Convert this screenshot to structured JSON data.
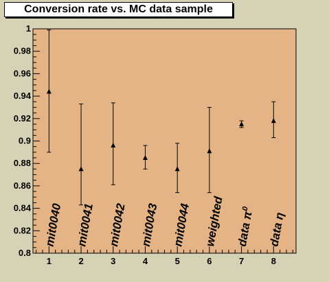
{
  "chart_data": {
    "type": "scatter",
    "title": "Conversion rate vs. MC data sample",
    "xlabel": "",
    "ylabel": "",
    "xlim": [
      0.5,
      8.7
    ],
    "ylim": [
      0.8,
      1.0
    ],
    "x_ticks": [
      1,
      2,
      3,
      4,
      5,
      6,
      7,
      8
    ],
    "y_ticks": [
      0.8,
      0.82,
      0.84,
      0.86,
      0.88,
      0.9,
      0.92,
      0.94,
      0.96,
      0.98,
      1
    ],
    "y_tick_labels": [
      "0.8",
      "0.82",
      "0.84",
      "0.86",
      "0.88",
      "0.9",
      "0.92",
      "0.94",
      "0.96",
      "0.98",
      "1"
    ],
    "grid": false,
    "colors": {
      "frame_bg": "#d6d2b6",
      "plot_bg": "#e4b486",
      "marker": "#000000"
    },
    "points": [
      {
        "x": 1,
        "label": "mit0040",
        "y": 0.944,
        "err_low": 0.89,
        "err_high": 0.999
      },
      {
        "x": 2,
        "label": "mit0041",
        "y": 0.875,
        "err_low": 0.843,
        "err_high": 0.933
      },
      {
        "x": 3,
        "label": "mit0042",
        "y": 0.896,
        "err_low": 0.861,
        "err_high": 0.934
      },
      {
        "x": 4,
        "label": "mit0043",
        "y": 0.885,
        "err_low": 0.875,
        "err_high": 0.896
      },
      {
        "x": 5,
        "label": "mit0044",
        "y": 0.875,
        "err_low": 0.854,
        "err_high": 0.898
      },
      {
        "x": 6,
        "label": "weighted",
        "y": 0.891,
        "err_low": 0.854,
        "err_high": 0.93
      },
      {
        "x": 7,
        "label": "data π",
        "label_sup": "0",
        "y": 0.915,
        "err_low": 0.912,
        "err_high": 0.918
      },
      {
        "x": 8,
        "label": "data η",
        "y": 0.918,
        "err_low": 0.903,
        "err_high": 0.935
      }
    ]
  }
}
